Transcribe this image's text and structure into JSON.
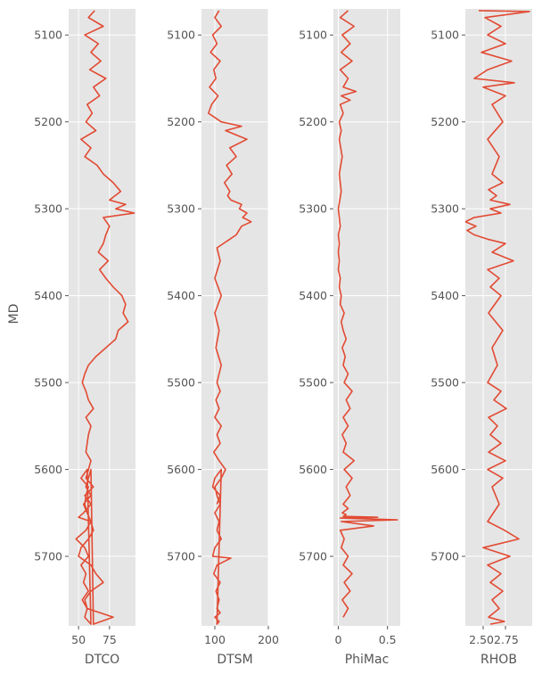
{
  "chart_data": [
    {
      "type": "line",
      "xlabel": "DTCO",
      "ylabel": "MD",
      "xlim": [
        42,
        96
      ],
      "ylim": [
        5780,
        5070
      ],
      "xticks": [
        50,
        75
      ],
      "yticks": [
        5100,
        5200,
        5300,
        5400,
        5500,
        5600,
        5700
      ],
      "grid": true,
      "x": [
        63,
        58,
        70,
        55,
        66,
        60,
        68,
        59,
        72,
        62,
        67,
        57,
        61,
        56,
        64,
        52,
        60,
        55,
        65,
        70,
        78,
        84,
        75,
        88,
        80,
        95,
        70,
        75,
        72,
        70,
        68,
        66,
        74,
        67,
        72,
        78,
        85,
        88,
        86,
        90,
        82,
        80,
        72,
        64,
        58,
        55,
        53,
        56,
        58,
        62,
        56,
        60,
        58,
        57,
        56,
        60,
        58,
        56,
        62,
        55,
        60,
        54,
        50,
        60,
        56,
        48,
        55,
        58,
        52,
        56,
        54,
        58,
        53,
        57,
        55,
        60,
        57,
        52,
        58,
        56,
        55,
        57,
        60,
        62,
        58,
        52,
        50,
        60,
        64,
        70,
        60,
        55,
        57,
        78,
        62,
        60,
        58,
        56,
        60,
        54,
        57,
        60,
        56
      ],
      "y": [
        5072,
        5080,
        5090,
        5100,
        5110,
        5120,
        5130,
        5140,
        5150,
        5160,
        5170,
        5180,
        5190,
        5200,
        5210,
        5220,
        5230,
        5240,
        5250,
        5260,
        5270,
        5280,
        5290,
        5295,
        5300,
        5305,
        5310,
        5320,
        5330,
        5340,
        5345,
        5350,
        5360,
        5370,
        5380,
        5390,
        5400,
        5410,
        5420,
        5430,
        5440,
        5450,
        5460,
        5470,
        5480,
        5490,
        5500,
        5510,
        5520,
        5530,
        5540,
        5550,
        5560,
        5570,
        5580,
        5590,
        5600,
        5610,
        5620,
        5630,
        5640,
        5650,
        5655,
        5660,
        5670,
        5680,
        5690,
        5700,
        5710,
        5720,
        5730,
        5740,
        5750,
        5760,
        5770,
        5778,
        5600,
        5610,
        5620,
        5630,
        5640,
        5650,
        5660,
        5670,
        5680,
        5690,
        5700,
        5710,
        5720,
        5730,
        5740,
        5750,
        5760,
        5770,
        5778,
        5600,
        5610,
        5620,
        5630,
        5640,
        5650,
        5660,
        5670
      ]
    },
    {
      "type": "line",
      "xlabel": "DTSM",
      "xlim": [
        75,
        200
      ],
      "ylim": [
        5780,
        5070
      ],
      "xticks": [
        100,
        200
      ],
      "yticks": [
        5100,
        5200,
        5300,
        5400,
        5500,
        5600,
        5700
      ],
      "grid": true,
      "x": [
        108,
        100,
        112,
        96,
        104,
        92,
        110,
        98,
        102,
        90,
        106,
        94,
        88,
        100,
        112,
        150,
        120,
        160,
        128,
        140,
        122,
        132,
        118,
        128,
        124,
        130,
        150,
        146,
        160,
        152,
        168,
        150,
        140,
        128,
        104,
        110,
        100,
        112,
        100,
        108,
        102,
        112,
        104,
        110,
        102,
        108,
        100,
        112,
        104,
        110,
        98,
        108,
        120,
        112,
        100,
        104,
        110,
        100,
        108,
        104,
        112,
        100,
        96,
        130,
        104,
        98,
        110,
        102,
        108,
        104,
        110,
        100,
        108,
        104,
        112,
        100,
        96,
        110,
        104
      ],
      "y": [
        5072,
        5080,
        5090,
        5100,
        5110,
        5120,
        5130,
        5140,
        5150,
        5160,
        5170,
        5180,
        5190,
        5195,
        5200,
        5205,
        5210,
        5220,
        5230,
        5240,
        5250,
        5260,
        5270,
        5280,
        5285,
        5290,
        5295,
        5300,
        5305,
        5310,
        5315,
        5320,
        5330,
        5335,
        5345,
        5360,
        5380,
        5400,
        5420,
        5440,
        5460,
        5480,
        5500,
        5510,
        5520,
        5530,
        5540,
        5550,
        5560,
        5570,
        5580,
        5590,
        5600,
        5610,
        5620,
        5630,
        5640,
        5650,
        5660,
        5670,
        5680,
        5690,
        5700,
        5702,
        5710,
        5720,
        5730,
        5740,
        5750,
        5760,
        5765,
        5770,
        5775,
        5778,
        5600,
        5610,
        5620,
        5630,
        5640
      ]
    },
    {
      "type": "line",
      "xlabel": "PhiMac",
      "xlim": [
        -0.05,
        0.63
      ],
      "ylim": [
        5780,
        5070
      ],
      "xticks": [
        0.0,
        0.5
      ],
      "yticks": [
        5100,
        5200,
        5300,
        5400,
        5500,
        5600,
        5700
      ],
      "grid": true,
      "x": [
        0.1,
        0.02,
        0.16,
        0.04,
        0.12,
        0.03,
        0.14,
        0.02,
        0.1,
        0.05,
        0.18,
        0.03,
        0.12,
        0.02,
        0.05,
        0.01,
        0.03,
        0.01,
        0.04,
        0.01,
        0.03,
        0.0,
        0.02,
        0.0,
        0.01,
        0.0,
        0.01,
        0.0,
        0.02,
        0.01,
        0.03,
        0.02,
        0.06,
        0.03,
        0.05,
        0.08,
        0.04,
        0.07,
        0.05,
        0.1,
        0.06,
        0.14,
        0.08,
        0.12,
        0.05,
        0.1,
        0.04,
        0.08,
        0.05,
        0.16,
        0.06,
        0.14,
        0.08,
        0.12,
        0.05,
        0.1,
        0.04,
        0.08,
        0.05,
        0.4,
        0.02,
        0.6,
        0.03,
        0.36,
        0.02,
        0.06,
        0.03,
        0.1,
        0.05,
        0.14,
        0.06,
        0.12,
        0.04,
        0.1,
        0.05
      ],
      "y": [
        5072,
        5080,
        5090,
        5100,
        5110,
        5120,
        5130,
        5140,
        5150,
        5160,
        5165,
        5170,
        5175,
        5180,
        5190,
        5200,
        5210,
        5220,
        5240,
        5260,
        5280,
        5300,
        5320,
        5330,
        5340,
        5350,
        5360,
        5370,
        5380,
        5390,
        5400,
        5410,
        5420,
        5430,
        5440,
        5450,
        5460,
        5470,
        5480,
        5490,
        5500,
        5510,
        5520,
        5530,
        5540,
        5550,
        5560,
        5570,
        5580,
        5590,
        5600,
        5610,
        5620,
        5630,
        5640,
        5645,
        5650,
        5652,
        5654,
        5655,
        5656,
        5658,
        5660,
        5665,
        5670,
        5680,
        5690,
        5700,
        5710,
        5720,
        5730,
        5740,
        5750,
        5760,
        5770
      ]
    },
    {
      "type": "line",
      "xlabel": "RHOB",
      "xlim": [
        2.3,
        3.05
      ],
      "ylim": [
        5780,
        5070
      ],
      "xticks": [
        2.5,
        2.75
      ],
      "xticklabels": [
        "2.502.75",
        ""
      ],
      "yticks": [
        5100,
        5200,
        5300,
        5400,
        5500,
        5600,
        5700
      ],
      "grid": true,
      "x": [
        2.45,
        3.02,
        2.52,
        2.7,
        2.55,
        2.75,
        2.48,
        2.82,
        2.55,
        2.4,
        2.85,
        2.5,
        2.75,
        2.6,
        2.72,
        2.55,
        2.68,
        2.6,
        2.72,
        2.56,
        2.65,
        2.58,
        2.8,
        2.58,
        2.7,
        2.4,
        2.3,
        2.42,
        2.32,
        2.4,
        2.55,
        2.75,
        2.6,
        2.84,
        2.55,
        2.68,
        2.58,
        2.7,
        2.56,
        2.72,
        2.6,
        2.66,
        2.55,
        2.7,
        2.62,
        2.76,
        2.56,
        2.66,
        2.58,
        2.7,
        2.56,
        2.75,
        2.55,
        2.72,
        2.6,
        2.68,
        2.55,
        2.74,
        2.9,
        2.5,
        2.8,
        2.55,
        2.7,
        2.58,
        2.72,
        2.6,
        2.68,
        2.56,
        2.74,
        2.58
      ],
      "y": [
        5072,
        5073,
        5080,
        5090,
        5100,
        5110,
        5120,
        5130,
        5140,
        5150,
        5155,
        5160,
        5170,
        5180,
        5200,
        5220,
        5240,
        5260,
        5270,
        5278,
        5285,
        5290,
        5295,
        5300,
        5305,
        5310,
        5315,
        5320,
        5325,
        5330,
        5335,
        5340,
        5350,
        5360,
        5370,
        5380,
        5390,
        5400,
        5420,
        5440,
        5460,
        5480,
        5500,
        5510,
        5520,
        5530,
        5540,
        5550,
        5560,
        5570,
        5580,
        5590,
        5600,
        5610,
        5620,
        5640,
        5660,
        5670,
        5680,
        5690,
        5700,
        5710,
        5720,
        5730,
        5740,
        5750,
        5760,
        5770,
        5775,
        5778
      ]
    }
  ],
  "colors": {
    "panel_bg": "#e5e5e5",
    "grid": "#ffffff",
    "line": "#e24a33",
    "tick_text": "#555555",
    "label_text": "#555555"
  }
}
